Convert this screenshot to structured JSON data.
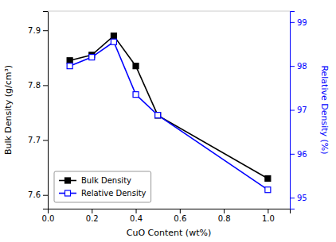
{
  "chart_data": {
    "type": "line",
    "xlabel": "CuO Content (wt%)",
    "ylabel": "Bulk Density (g/cm³)",
    "y2label": "Relative Density (%)",
    "x": [
      0.1,
      0.2,
      0.3,
      0.4,
      0.5,
      1.0
    ],
    "series": [
      {
        "name": "Bulk Density",
        "color": "black",
        "marker": "square",
        "line_style": "solid",
        "axis": "y",
        "values": [
          7.845,
          7.855,
          7.89,
          7.835,
          7.745,
          7.63
        ]
      },
      {
        "name": "Relative Density",
        "color": "blue",
        "marker": "open-square",
        "line_style": "solid",
        "axis": "y2",
        "values": [
          98.0,
          98.2,
          98.55,
          97.35,
          96.88,
          95.18
        ]
      }
    ],
    "xlim": [
      0.0,
      1.1
    ],
    "xticks": [
      {
        "value": 0.0,
        "label": "0.0"
      },
      0.2,
      0.4,
      0.6,
      0.8,
      {
        "value": 1.0,
        "label": "1.0"
      }
    ],
    "ylim": [
      7.575,
      7.935
    ],
    "yticks": [
      7.6,
      7.7,
      7.8,
      7.9
    ],
    "y2lim": [
      94.75,
      99.25
    ],
    "y2ticks": [
      95,
      96,
      97,
      98,
      99
    ],
    "grid": false,
    "legend": "lower left"
  }
}
